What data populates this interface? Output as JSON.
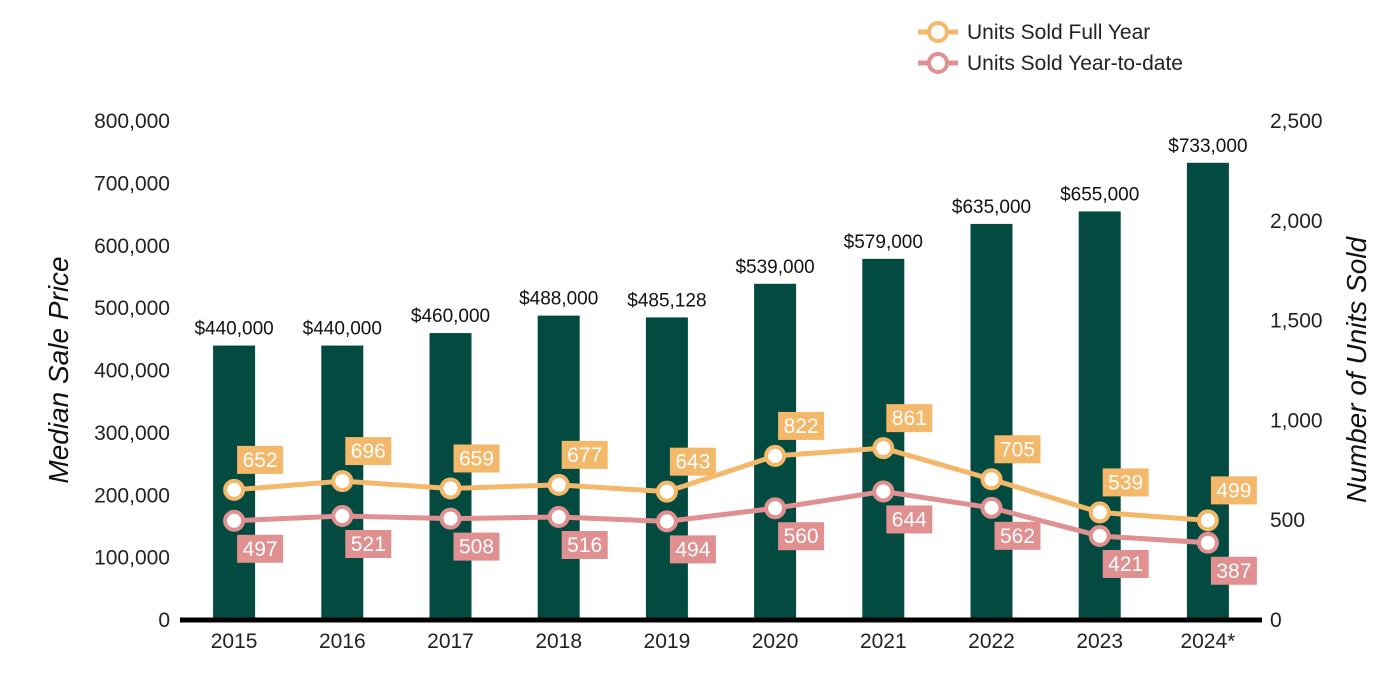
{
  "chart_data": {
    "type": "bar",
    "categories": [
      "2015",
      "2016",
      "2017",
      "2018",
      "2019",
      "2020",
      "2021",
      "2022",
      "2023",
      "2024*"
    ],
    "bars": {
      "name": "Median Sale Price",
      "values": [
        440000,
        440000,
        460000,
        488000,
        485128,
        539000,
        579000,
        635000,
        655000,
        733000
      ],
      "labels": [
        "$440,000",
        "$440,000",
        "$460,000",
        "$488,000",
        "$485,128",
        "$539,000",
        "$579,000",
        "$635,000",
        "$655,000",
        "$733,000"
      ],
      "color": "#034a40"
    },
    "lines": [
      {
        "name": "Units Sold Full Year",
        "values": [
          652,
          696,
          659,
          677,
          643,
          822,
          861,
          705,
          539,
          499
        ],
        "color": "#f4b86a"
      },
      {
        "name": "Units Sold Year-to-date",
        "values": [
          497,
          521,
          508,
          516,
          494,
          560,
          644,
          562,
          421,
          387
        ],
        "color": "#e09090"
      }
    ],
    "ylabel": "Median Sale Price",
    "y2label": "Number of Units Sold",
    "ylim": [
      0,
      800000
    ],
    "y2lim": [
      0,
      2500
    ],
    "yticks": [
      "0",
      "100,000",
      "200,000",
      "300,000",
      "400,000",
      "500,000",
      "600,000",
      "700,000",
      "800,000"
    ],
    "y2ticks": [
      "0",
      "500",
      "1,000",
      "1,500",
      "2,000",
      "2,500"
    ],
    "grid": false,
    "legend": "top-right"
  }
}
